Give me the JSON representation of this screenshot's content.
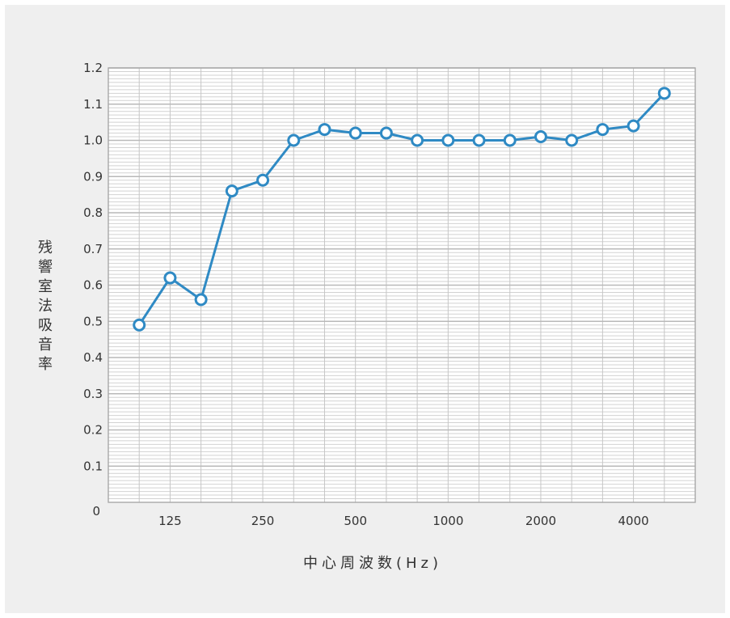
{
  "chart_data": {
    "type": "line",
    "title": "",
    "xlabel": "中心周波数(Hz)",
    "ylabel": "残響室法吸音率",
    "x_tick_labels": [
      "125",
      "250",
      "500",
      "1000",
      "2000",
      "4000"
    ],
    "x_tick_positions": [
      2,
      5,
      8,
      11,
      14,
      17
    ],
    "y_tick_labels": [
      "0",
      "0.1",
      "0.2",
      "0.3",
      "0.4",
      "0.5",
      "0.6",
      "0.7",
      "0.8",
      "0.9",
      "1.0",
      "1.1",
      "1.2"
    ],
    "ylim": [
      0,
      1.2
    ],
    "grid": true,
    "series": [
      {
        "values": [
          0.49,
          0.62,
          0.56,
          0.86,
          0.89,
          1.0,
          1.03,
          1.02,
          1.02,
          1.0,
          1.0,
          1.0,
          1.0,
          1.01,
          1.0,
          1.03,
          1.04,
          1.13
        ],
        "color": "#2f8ac4"
      }
    ]
  }
}
